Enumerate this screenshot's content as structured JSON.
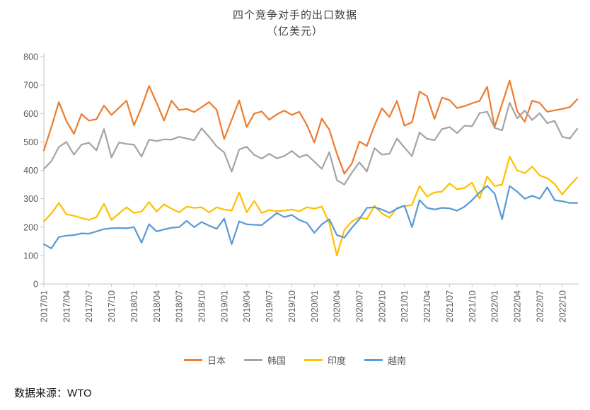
{
  "title": "四个竞争对手的出口数据",
  "subtitle": "（亿美元）",
  "source": "数据来源：WTO",
  "chart_data": {
    "type": "line",
    "unit": "亿美元",
    "x_frequency": "monthly",
    "x_start": "2017/01",
    "ylim": [
      0,
      800
    ],
    "ytick_step": 100,
    "label_every": 3,
    "legend_position": "bottom",
    "grid": false,
    "x_labels": [
      "2017/01",
      "2017/04",
      "2017/07",
      "2017/10",
      "2018/01",
      "2018/04",
      "2018/07",
      "2018/10",
      "2019/01",
      "2019/04",
      "2019/07",
      "2019/10",
      "2020/01",
      "2020/04",
      "2020/07",
      "2020/10",
      "2021/01",
      "2021/04",
      "2021/07",
      "2021/10",
      "2022/01",
      "2022/04",
      "2022/07",
      "2022/10"
    ],
    "series": [
      {
        "name": "日本",
        "color": "#ED7D31",
        "values": [
          470,
          552,
          640,
          573,
          528,
          598,
          575,
          580,
          628,
          595,
          620,
          645,
          558,
          622,
          697,
          638,
          575,
          645,
          612,
          616,
          605,
          622,
          640,
          613,
          510,
          578,
          646,
          552,
          600,
          607,
          578,
          597,
          610,
          595,
          606,
          560,
          498,
          582,
          543,
          458,
          388,
          424,
          501,
          486,
          557,
          618,
          588,
          644,
          557,
          569,
          677,
          661,
          581,
          656,
          647,
          619,
          626,
          636,
          644,
          694,
          552,
          634,
          716,
          609,
          571,
          645,
          637,
          606,
          611,
          616,
          622,
          650
        ]
      },
      {
        "name": "韩国",
        "color": "#A5A5A5",
        "values": [
          405,
          432,
          482,
          500,
          455,
          490,
          497,
          470,
          545,
          445,
          498,
          493,
          490,
          448,
          508,
          503,
          509,
          508,
          518,
          512,
          506,
          548,
          518,
          484,
          463,
          395,
          473,
          483,
          454,
          441,
          458,
          442,
          450,
          468,
          446,
          455,
          431,
          405,
          464,
          365,
          350,
          392,
          428,
          396,
          478,
          455,
          458,
          512,
          480,
          450,
          533,
          511,
          506,
          545,
          552,
          531,
          557,
          555,
          601,
          606,
          549,
          541,
          638,
          583,
          610,
          577,
          601,
          566,
          574,
          518,
          512,
          546
        ]
      },
      {
        "name": "印度",
        "color": "#FFC000",
        "values": [
          220,
          248,
          285,
          245,
          240,
          232,
          225,
          235,
          282,
          225,
          248,
          270,
          250,
          255,
          288,
          255,
          280,
          265,
          252,
          272,
          268,
          270,
          252,
          270,
          262,
          258,
          322,
          252,
          292,
          250,
          260,
          256,
          258,
          262,
          256,
          270,
          265,
          272,
          215,
          100,
          190,
          220,
          235,
          228,
          275,
          248,
          233,
          268,
          274,
          278,
          345,
          308,
          322,
          325,
          354,
          333,
          338,
          357,
          300,
          378,
          345,
          350,
          448,
          400,
          390,
          413,
          382,
          372,
          352,
          315,
          347,
          375
        ]
      },
      {
        "name": "越南",
        "color": "#5B9BD5",
        "values": [
          140,
          125,
          165,
          170,
          172,
          178,
          177,
          185,
          193,
          196,
          197,
          196,
          200,
          145,
          210,
          185,
          192,
          198,
          200,
          222,
          200,
          218,
          205,
          194,
          230,
          140,
          220,
          210,
          208,
          207,
          228,
          250,
          235,
          243,
          225,
          215,
          180,
          210,
          228,
          172,
          163,
          198,
          228,
          268,
          270,
          262,
          250,
          265,
          276,
          200,
          295,
          268,
          262,
          268,
          266,
          258,
          272,
          295,
          322,
          345,
          318,
          228,
          345,
          325,
          300,
          310,
          300,
          340,
          295,
          291,
          285,
          285
        ]
      }
    ]
  }
}
